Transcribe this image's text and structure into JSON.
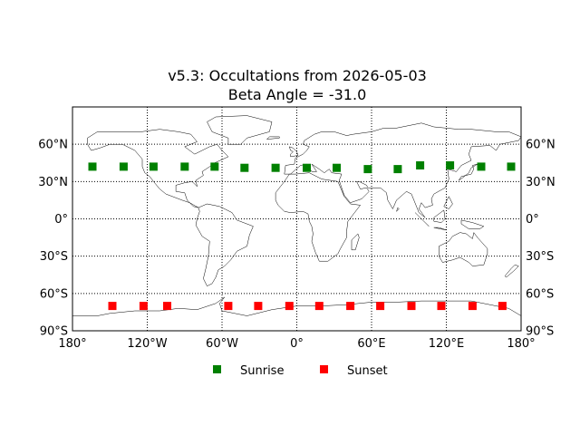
{
  "chart_data": {
    "type": "scatter",
    "title": "v5.3: Occultations from 2026-05-03",
    "subtitle": "Beta Angle = -31.0",
    "xlim": [
      -180,
      180
    ],
    "ylim": [
      -90,
      90
    ],
    "x_ticks": [
      {
        "value": -180,
        "label": "180°"
      },
      {
        "value": -120,
        "label": "120°W"
      },
      {
        "value": -60,
        "label": "60°W"
      },
      {
        "value": 0,
        "label": "0°"
      },
      {
        "value": 60,
        "label": "60°E"
      },
      {
        "value": 120,
        "label": "120°E"
      },
      {
        "value": 180,
        "label": "180°"
      }
    ],
    "y_ticks": [
      {
        "value": 60,
        "label": "60°N"
      },
      {
        "value": 30,
        "label": "30°N"
      },
      {
        "value": 0,
        "label": "0°"
      },
      {
        "value": -30,
        "label": "30°S"
      },
      {
        "value": -60,
        "label": "60°S"
      },
      {
        "value": -90,
        "label": "90°S"
      }
    ],
    "grid": "dotted",
    "legend": "bottom-center",
    "series": [
      {
        "name": "Sunrise",
        "color": "#008000",
        "marker": "square",
        "points": [
          {
            "x": -164,
            "y": 42
          },
          {
            "x": -139,
            "y": 42
          },
          {
            "x": -115,
            "y": 42
          },
          {
            "x": -90,
            "y": 42
          },
          {
            "x": -66,
            "y": 42
          },
          {
            "x": -42,
            "y": 41
          },
          {
            "x": -17,
            "y": 41
          },
          {
            "x": 8,
            "y": 41
          },
          {
            "x": 32,
            "y": 41
          },
          {
            "x": 57,
            "y": 40
          },
          {
            "x": 81,
            "y": 40
          },
          {
            "x": 99,
            "y": 43
          },
          {
            "x": 123,
            "y": 43
          },
          {
            "x": 148,
            "y": 42
          },
          {
            "x": 172,
            "y": 42
          }
        ]
      },
      {
        "name": "Sunset",
        "color": "#ff0000",
        "marker": "square",
        "points": [
          {
            "x": -148,
            "y": -70
          },
          {
            "x": -123,
            "y": -70
          },
          {
            "x": -104,
            "y": -70
          },
          {
            "x": -55,
            "y": -70
          },
          {
            "x": -31,
            "y": -70
          },
          {
            "x": -6,
            "y": -70
          },
          {
            "x": 18,
            "y": -70
          },
          {
            "x": 43,
            "y": -70
          },
          {
            "x": 67,
            "y": -70
          },
          {
            "x": 92,
            "y": -70
          },
          {
            "x": 116,
            "y": -70
          },
          {
            "x": 141,
            "y": -70
          },
          {
            "x": 165,
            "y": -70
          }
        ]
      }
    ]
  },
  "legend": {
    "sunrise_label": "Sunrise",
    "sunset_label": "Sunset"
  }
}
